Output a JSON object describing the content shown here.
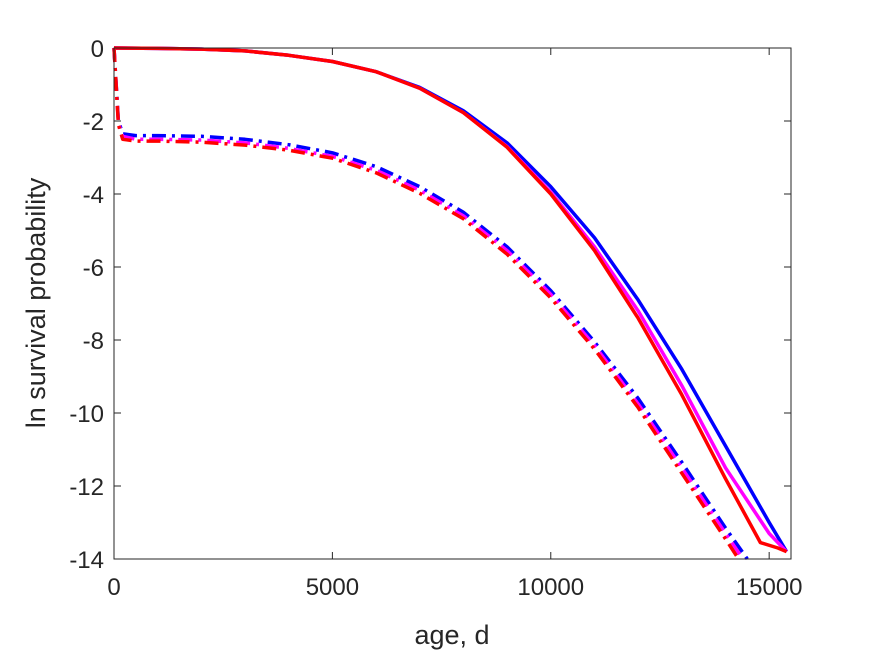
{
  "chart_data": {
    "type": "line",
    "title": "",
    "xlabel": "age, d",
    "ylabel": "ln survival probability",
    "xlim": [
      0,
      15500
    ],
    "ylim": [
      -14,
      0
    ],
    "xticks": [
      0,
      5000,
      10000,
      15000
    ],
    "xtick_labels": [
      "0",
      "5000",
      "10000",
      "15000"
    ],
    "yticks": [
      0,
      -2,
      -4,
      -6,
      -8,
      -10,
      -12,
      -14
    ],
    "ytick_labels": [
      "0",
      "-2",
      "-4",
      "-6",
      "-8",
      "-10",
      "-12",
      "-14"
    ],
    "grid": false,
    "legend": "none",
    "series": [
      {
        "color": "#0000ff",
        "style": "solid",
        "x": [
          0,
          1000,
          2000,
          3000,
          4000,
          5000,
          6000,
          7000,
          8000,
          9000,
          10000,
          11000,
          12000,
          13000,
          14000,
          15000,
          15400
        ],
        "y": [
          0,
          -0.01,
          -0.03,
          -0.08,
          -0.2,
          -0.37,
          -0.65,
          -1.08,
          -1.72,
          -2.6,
          -3.8,
          -5.2,
          -6.9,
          -8.8,
          -10.9,
          -13.0,
          -13.8
        ]
      },
      {
        "color": "#ff00ff",
        "style": "solid",
        "x": [
          0,
          1000,
          2000,
          3000,
          4000,
          5000,
          6000,
          7000,
          8000,
          9000,
          10000,
          11000,
          12000,
          13000,
          14000,
          15000,
          15400
        ],
        "y": [
          0,
          -0.01,
          -0.03,
          -0.08,
          -0.2,
          -0.37,
          -0.65,
          -1.1,
          -1.77,
          -2.7,
          -3.95,
          -5.45,
          -7.2,
          -9.25,
          -11.5,
          -13.3,
          -13.8
        ]
      },
      {
        "color": "#ff0000",
        "style": "solid",
        "x": [
          0,
          1000,
          2000,
          3000,
          4000,
          5000,
          6000,
          7000,
          8000,
          9000,
          10000,
          11000,
          12000,
          13000,
          14000,
          14800,
          15200,
          15400
        ],
        "y": [
          0,
          -0.01,
          -0.03,
          -0.08,
          -0.2,
          -0.37,
          -0.65,
          -1.1,
          -1.77,
          -2.72,
          -4.0,
          -5.55,
          -7.4,
          -9.5,
          -11.8,
          -13.55,
          -13.7,
          -13.8
        ]
      },
      {
        "color": "#0000ff",
        "style": "dashdot",
        "x": [
          0,
          100,
          200,
          500,
          1000,
          2000,
          3000,
          4000,
          5000,
          6000,
          7000,
          8000,
          9000,
          10000,
          11000,
          12000,
          13000,
          14000,
          14500
        ],
        "y": [
          0,
          -2.0,
          -2.35,
          -2.4,
          -2.4,
          -2.42,
          -2.5,
          -2.65,
          -2.87,
          -3.25,
          -3.8,
          -4.5,
          -5.45,
          -6.65,
          -8.05,
          -9.6,
          -11.35,
          -13.15,
          -14.0
        ]
      },
      {
        "color": "#ff00ff",
        "style": "dashdot",
        "x": [
          0,
          100,
          200,
          500,
          1000,
          2000,
          3000,
          4000,
          5000,
          6000,
          7000,
          8000,
          9000,
          10000,
          11000,
          12000,
          13000,
          14000,
          14400
        ],
        "y": [
          0,
          -2.05,
          -2.42,
          -2.5,
          -2.5,
          -2.52,
          -2.6,
          -2.75,
          -2.97,
          -3.35,
          -3.9,
          -4.6,
          -5.55,
          -6.75,
          -8.15,
          -9.75,
          -11.5,
          -13.3,
          -14.0
        ]
      },
      {
        "color": "#ff0000",
        "style": "dashdot",
        "x": [
          0,
          100,
          200,
          500,
          1000,
          2000,
          3000,
          4000,
          5000,
          6000,
          7000,
          8000,
          9000,
          10000,
          11000,
          12000,
          13000,
          14000,
          14300
        ],
        "y": [
          0,
          -2.1,
          -2.5,
          -2.55,
          -2.55,
          -2.58,
          -2.66,
          -2.8,
          -3.02,
          -3.42,
          -3.98,
          -4.68,
          -5.65,
          -6.85,
          -8.25,
          -9.85,
          -11.65,
          -13.45,
          -14.0
        ]
      }
    ]
  }
}
